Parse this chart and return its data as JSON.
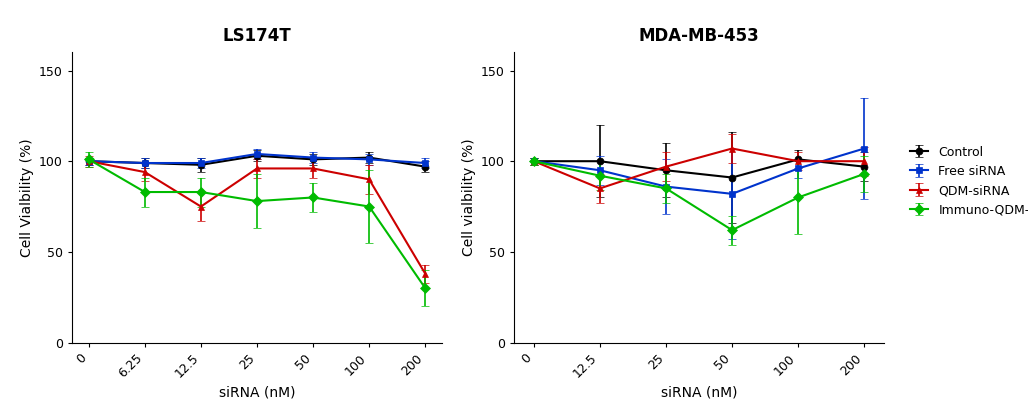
{
  "title_left": "LS174T",
  "title_right": "MDA-MB-453",
  "xlabel": "siRNA (nM)",
  "ylabel_left": "Cell Vialbility (%)",
  "ylabel_right": "Cell vialbility (%)",
  "ylim": [
    0,
    160
  ],
  "yticks": [
    0,
    50,
    100,
    150
  ],
  "ls174t": {
    "x_labels": [
      "0",
      "6.25",
      "12.5",
      "25",
      "50",
      "100",
      "200"
    ],
    "control": {
      "y": [
        100,
        99,
        98,
        103,
        101,
        102,
        97
      ],
      "yerr": [
        2,
        3,
        4,
        3,
        3,
        3,
        3
      ]
    },
    "free_sirna": {
      "y": [
        100,
        99,
        99,
        104,
        102,
        101,
        99
      ],
      "yerr": [
        2,
        3,
        3,
        3,
        3,
        3,
        3
      ]
    },
    "qdm_sirna": {
      "y": [
        100,
        94,
        75,
        96,
        96,
        90,
        38
      ],
      "yerr": [
        3,
        5,
        8,
        5,
        5,
        8,
        5
      ]
    },
    "immuno_qdm": {
      "y": [
        101,
        83,
        83,
        78,
        80,
        75,
        30
      ],
      "yerr": [
        4,
        8,
        8,
        15,
        8,
        20,
        10
      ]
    }
  },
  "mda_mb453": {
    "x_labels": [
      "0",
      "12.5",
      "25",
      "50",
      "100",
      "200"
    ],
    "control": {
      "y": [
        100,
        100,
        95,
        91,
        101,
        97
      ],
      "yerr": [
        2,
        20,
        15,
        25,
        5,
        8
      ]
    },
    "free_sirna": {
      "y": [
        100,
        95,
        86,
        82,
        96,
        107
      ],
      "yerr": [
        2,
        8,
        15,
        25,
        5,
        28
      ]
    },
    "qdm_sirna": {
      "y": [
        100,
        85,
        97,
        107,
        100,
        100
      ],
      "yerr": [
        2,
        8,
        8,
        8,
        5,
        8
      ]
    },
    "immuno_qdm": {
      "y": [
        100,
        92,
        85,
        62,
        80,
        93
      ],
      "yerr": [
        2,
        8,
        8,
        8,
        20,
        10
      ]
    }
  },
  "series_order": [
    "control",
    "free_sirna",
    "qdm_sirna",
    "immuno_qdm"
  ],
  "colors": {
    "control": "#000000",
    "free_sirna": "#0033CC",
    "qdm_sirna": "#CC0000",
    "immuno_qdm": "#00BB00"
  },
  "markers": {
    "control": "o",
    "free_sirna": "s",
    "qdm_sirna": "^",
    "immuno_qdm": "D"
  },
  "markerfacecolors": {
    "control": "#000000",
    "free_sirna": "#0033CC",
    "qdm_sirna": "#CC0000",
    "immuno_qdm": "#00BB00"
  },
  "labels": {
    "control": "Control",
    "free_sirna": "Free siRNA",
    "qdm_sirna": "QDM-siRNA",
    "immuno_qdm": "Immuno-QDM-siRNA"
  }
}
